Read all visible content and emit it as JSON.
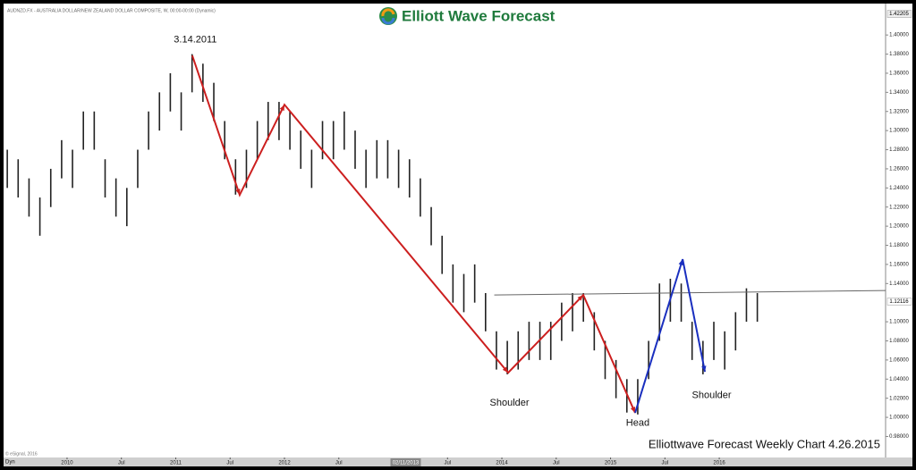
{
  "chart_data": {
    "type": "ohlc",
    "title": "AUDNZD.FX - AUSTRALIA DOLLAR/NEW ZEALAND DOLLAR COMPOSITE, W, 00:00-00:00 (Dynamic)",
    "logo": "Elliott Wave Forecast",
    "footer": "Elliottwave Forecast Weekly Chart 4.26.2015",
    "copyright": "© eSignal, 2016",
    "mode": "Dyn",
    "color": "#222222",
    "x": [
      2009.45,
      2009.55,
      2009.65,
      2009.75,
      2009.85,
      2009.95,
      2010.05,
      2010.15,
      2010.25,
      2010.35,
      2010.45,
      2010.55,
      2010.65,
      2010.75,
      2010.85,
      2010.95,
      2011.05,
      2011.15,
      2011.25,
      2011.35,
      2011.45,
      2011.55,
      2011.65,
      2011.75,
      2011.85,
      2011.95,
      2012.05,
      2012.15,
      2012.25,
      2012.35,
      2012.45,
      2012.55,
      2012.65,
      2012.75,
      2012.85,
      2012.95,
      2013.05,
      2013.15,
      2013.25,
      2013.35,
      2013.45,
      2013.55,
      2013.65,
      2013.75,
      2013.85,
      2013.95,
      2014.05,
      2014.15,
      2014.25,
      2014.35,
      2014.45,
      2014.55,
      2014.65,
      2014.75,
      2014.85,
      2014.95,
      2015.05,
      2015.15,
      2015.25,
      2015.35,
      2015.45,
      2015.55,
      2015.65,
      2015.75,
      2015.85,
      2015.95,
      2016.05,
      2016.15,
      2016.25,
      2016.35
    ],
    "high": [
      1.28,
      1.27,
      1.25,
      1.23,
      1.26,
      1.29,
      1.28,
      1.32,
      1.32,
      1.27,
      1.25,
      1.24,
      1.28,
      1.32,
      1.34,
      1.36,
      1.34,
      1.38,
      1.37,
      1.35,
      1.31,
      1.27,
      1.28,
      1.31,
      1.33,
      1.33,
      1.32,
      1.3,
      1.28,
      1.31,
      1.31,
      1.32,
      1.3,
      1.28,
      1.29,
      1.29,
      1.28,
      1.27,
      1.25,
      1.22,
      1.19,
      1.16,
      1.15,
      1.16,
      1.13,
      1.09,
      1.08,
      1.09,
      1.1,
      1.1,
      1.1,
      1.12,
      1.13,
      1.13,
      1.11,
      1.08,
      1.06,
      1.04,
      1.04,
      1.08,
      1.14,
      1.145,
      1.14,
      1.1,
      1.08,
      1.1,
      1.09,
      1.11,
      1.135,
      1.13
    ],
    "low": [
      1.24,
      1.23,
      1.21,
      1.19,
      1.22,
      1.25,
      1.24,
      1.28,
      1.28,
      1.23,
      1.21,
      1.2,
      1.24,
      1.28,
      1.3,
      1.32,
      1.3,
      1.34,
      1.33,
      1.31,
      1.27,
      1.233,
      1.24,
      1.27,
      1.29,
      1.29,
      1.28,
      1.26,
      1.24,
      1.27,
      1.27,
      1.28,
      1.26,
      1.24,
      1.25,
      1.25,
      1.24,
      1.23,
      1.21,
      1.18,
      1.15,
      1.12,
      1.11,
      1.12,
      1.09,
      1.05,
      1.045,
      1.05,
      1.06,
      1.06,
      1.06,
      1.08,
      1.09,
      1.1,
      1.07,
      1.04,
      1.02,
      1.005,
      1.003,
      1.04,
      1.08,
      1.1,
      1.1,
      1.06,
      1.045,
      1.06,
      1.05,
      1.07,
      1.1,
      1.1
    ],
    "wave_lines": [
      {
        "color": "#cc1f1f",
        "x": [
          2011.152,
          2011.588,
          2012.0,
          2014.058,
          2014.749,
          2015.226
        ],
        "y": [
          1.3785,
          1.2327,
          1.3271,
          1.0467,
          1.128,
          1.0047
        ]
      },
      {
        "color": "#1a2fbf",
        "x": [
          2015.226,
          2015.663,
          2015.868
        ],
        "y": [
          1.0047,
          1.1654,
          1.0477
        ]
      }
    ],
    "neckline": {
      "color": "#666666",
      "x": [
        2013.93,
        2017.53
      ],
      "y": [
        1.128,
        1.1327
      ]
    },
    "annotations": [
      {
        "text": "3.14.2011",
        "x": 2011.18,
        "y": 1.395
      },
      {
        "text": "Shoulder",
        "x": 2014.07,
        "y": 1.015
      },
      {
        "text": "Head",
        "x": 2015.25,
        "y": 0.994
      },
      {
        "text": "Shoulder",
        "x": 2015.93,
        "y": 1.023
      }
    ],
    "xlim": [
      2009.416,
      2017.53
    ],
    "ylim": [
      0.958,
      1.431
    ],
    "xticks": [
      {
        "value": 2010,
        "label": "2010"
      },
      {
        "value": 2010.5,
        "label": "Jul"
      },
      {
        "value": 2011,
        "label": "2011"
      },
      {
        "value": 2011.5,
        "label": "Jul"
      },
      {
        "value": 2012,
        "label": "2012"
      },
      {
        "value": 2012.5,
        "label": "Jul"
      },
      {
        "value": 2013.5,
        "label": "Jul"
      },
      {
        "value": 2014,
        "label": "2014"
      },
      {
        "value": 2014.5,
        "label": "Jul"
      },
      {
        "value": 2015,
        "label": "2015"
      },
      {
        "value": 2015.5,
        "label": "Jul"
      },
      {
        "value": 2016,
        "label": "2016"
      }
    ],
    "yticks": [
      {
        "value": 0.98,
        "label": "0.98000"
      },
      {
        "value": 1.0,
        "label": "1.00000"
      },
      {
        "value": 1.02,
        "label": "1.02000"
      },
      {
        "value": 1.04,
        "label": "1.04000"
      },
      {
        "value": 1.06,
        "label": "1.06000"
      },
      {
        "value": 1.08,
        "label": "1.08000"
      },
      {
        "value": 1.1,
        "label": "1.10000"
      },
      {
        "value": 1.14,
        "label": "1.14000"
      },
      {
        "value": 1.16,
        "label": "1.16000"
      },
      {
        "value": 1.18,
        "label": "1.18000"
      },
      {
        "value": 1.2,
        "label": "1.20000"
      },
      {
        "value": 1.22,
        "label": "1.22000"
      },
      {
        "value": 1.24,
        "label": "1.24000"
      },
      {
        "value": 1.26,
        "label": "1.26000"
      },
      {
        "value": 1.28,
        "label": "1.28000"
      },
      {
        "value": 1.3,
        "label": "1.30000"
      },
      {
        "value": 1.32,
        "label": "1.32000"
      },
      {
        "value": 1.34,
        "label": "1.34000"
      },
      {
        "value": 1.36,
        "label": "1.36000"
      },
      {
        "value": 1.38,
        "label": "1.38000"
      },
      {
        "value": 1.4,
        "label": "1.40000"
      }
    ],
    "last_price": 1.42205,
    "marker_price": 1.12116,
    "cursor_date": {
      "value": 2013.115,
      "label": "02/11/2013"
    }
  }
}
